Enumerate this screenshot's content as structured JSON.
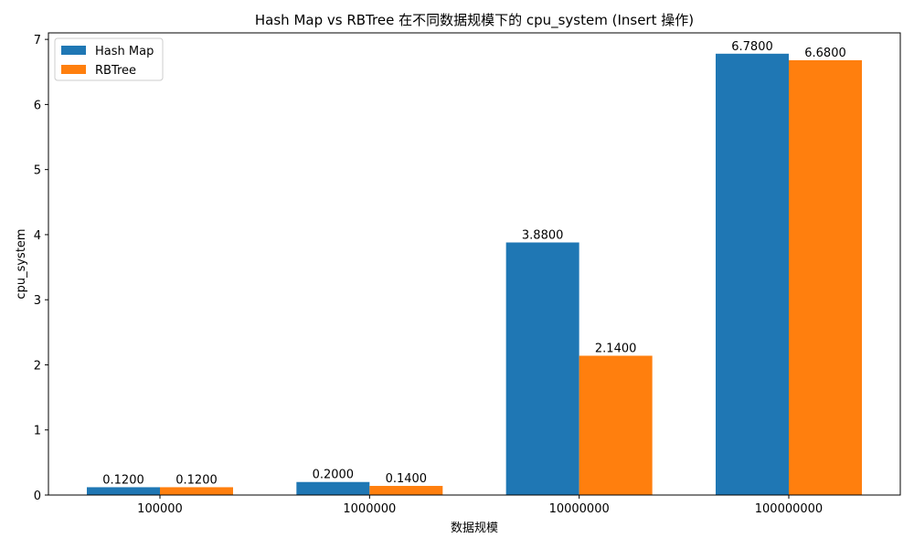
{
  "chart_data": {
    "type": "bar",
    "title": "Hash Map vs RBTree 在不同数据规模下的 cpu_system (Insert 操作)",
    "xlabel": "数据规模",
    "ylabel": "cpu_system",
    "categories": [
      "100000",
      "1000000",
      "10000000",
      "100000000"
    ],
    "series": [
      {
        "name": "Hash Map",
        "color": "#1f77b4",
        "values": [
          0.12,
          0.2,
          3.88,
          6.78
        ],
        "labels": [
          "0.1200",
          "0.2000",
          "3.8800",
          "6.7800"
        ]
      },
      {
        "name": "RBTree",
        "color": "#ff7f0e",
        "values": [
          0.12,
          0.14,
          2.14,
          6.68
        ],
        "labels": [
          "0.1200",
          "0.1400",
          "2.1400",
          "6.6800"
        ]
      }
    ],
    "ylim": [
      0,
      7.1
    ],
    "yticks": [
      "0",
      "1",
      "2",
      "3",
      "4",
      "5",
      "6",
      "7"
    ],
    "grid": false,
    "legend_position": "top-left"
  }
}
